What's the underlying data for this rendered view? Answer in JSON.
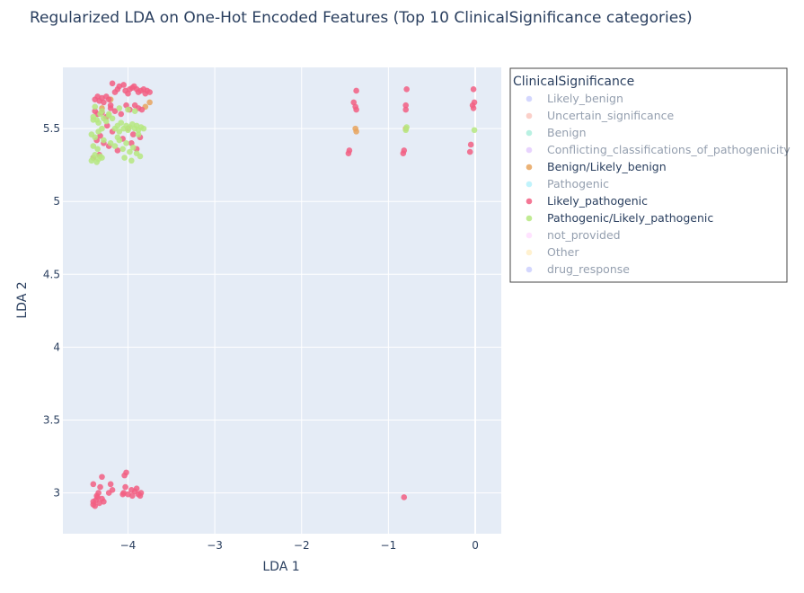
{
  "chart_data": {
    "type": "scatter",
    "title": "Regularized LDA on One-Hot Encoded Features (Top 10 ClinicalSignificance categories)",
    "xlabel": "LDA 1",
    "ylabel": "LDA 2",
    "xlim": [
      -4.75,
      0.3
    ],
    "ylim": [
      2.72,
      5.92
    ],
    "xticks": [
      -4,
      -3,
      -2,
      -1,
      0
    ],
    "xtick_labels": [
      "−4",
      "−3",
      "−2",
      "−1",
      "0"
    ],
    "yticks": [
      3,
      3.5,
      4,
      4.5,
      5,
      5.5
    ],
    "ytick_labels": [
      "3",
      "3.5",
      "4",
      "4.5",
      "5",
      "5.5"
    ],
    "grid": true,
    "background": "#e5ecf6",
    "legend": {
      "title": "ClinicalSignificance",
      "placement": "right"
    },
    "series": [
      {
        "name": "Likely_benign",
        "color": "#636efa",
        "visible": false,
        "x": [],
        "y": []
      },
      {
        "name": "Uncertain_significance",
        "color": "#ef553b",
        "visible": false,
        "x": [],
        "y": []
      },
      {
        "name": "Benign",
        "color": "#00cc96",
        "visible": false,
        "x": [],
        "y": []
      },
      {
        "name": "Conflicting_classifications_of_pathogenicity",
        "color": "#ab63fa",
        "visible": false,
        "x": [],
        "y": []
      },
      {
        "name": "Benign/Likely_benign",
        "color": "#e8a55e",
        "visible": true,
        "x": [
          -1.37,
          -1.38,
          -4.3,
          -4.2,
          -3.8,
          -3.75,
          -0.8
        ],
        "y": [
          5.48,
          5.5,
          5.64,
          5.7,
          5.65,
          5.68,
          5.5
        ]
      },
      {
        "name": "Pathogenic",
        "color": "#19d3f3",
        "visible": false,
        "x": [],
        "y": []
      },
      {
        "name": "Likely_pathogenic",
        "color": "#f25f82",
        "visible": true,
        "x": [
          -4.38,
          -4.35,
          -4.33,
          -4.3,
          -4.28,
          -4.25,
          -4.22,
          -4.2,
          -4.18,
          -4.15,
          -4.12,
          -4.1,
          -4.05,
          -4.03,
          -4.0,
          -3.98,
          -3.95,
          -3.93,
          -3.9,
          -3.88,
          -3.85,
          -3.82,
          -3.8,
          -3.78,
          -3.75,
          -4.38,
          -4.35,
          -4.3,
          -4.25,
          -4.2,
          -4.15,
          -4.08,
          -4.02,
          -3.98,
          -3.92,
          -3.88,
          -3.84,
          -4.36,
          -4.32,
          -4.28,
          -4.22,
          -4.12,
          -4.06,
          -3.96,
          -3.9,
          -4.4,
          -4.33,
          -4.24,
          -4.18,
          -4.0,
          -3.94,
          -3.86,
          -4.4,
          -4.37,
          -4.35,
          -4.33,
          -4.3,
          -4.28,
          -4.4,
          -4.36,
          -4.32,
          -4.22,
          -4.2,
          -4.18,
          -4.05,
          -4.03,
          -4.0,
          -3.95,
          -3.92,
          -3.9,
          -3.88,
          -3.85,
          -4.38,
          -4.3,
          -4.04,
          -4.02,
          -4.4,
          -4.34,
          -4.06,
          -3.96,
          -3.86,
          -1.37,
          -1.38,
          -1.37,
          -1.4,
          -1.45,
          -1.46,
          -0.8,
          -0.8,
          -0.79,
          -0.82,
          -0.83,
          -0.02,
          -0.03,
          -0.02,
          -0.01,
          -0.05,
          -0.06,
          -0.82
        ],
        "y": [
          5.7,
          5.72,
          5.69,
          5.71,
          5.68,
          5.72,
          5.7,
          5.66,
          5.81,
          5.75,
          5.77,
          5.79,
          5.8,
          5.76,
          5.74,
          5.77,
          5.78,
          5.79,
          5.77,
          5.75,
          5.76,
          5.77,
          5.74,
          5.76,
          5.75,
          5.62,
          5.6,
          5.61,
          5.58,
          5.64,
          5.62,
          5.6,
          5.66,
          5.63,
          5.66,
          5.64,
          5.63,
          5.42,
          5.45,
          5.4,
          5.38,
          5.35,
          5.43,
          5.4,
          5.36,
          5.3,
          5.32,
          5.52,
          5.48,
          5.5,
          5.46,
          5.44,
          2.92,
          2.95,
          2.97,
          2.93,
          2.96,
          2.94,
          3.06,
          2.98,
          3.04,
          3.0,
          3.06,
          3.02,
          3.0,
          3.04,
          2.99,
          2.98,
          3.01,
          3.03,
          2.99,
          3.0,
          2.91,
          3.11,
          3.12,
          3.14,
          2.94,
          3.0,
          2.99,
          3.02,
          2.98,
          5.63,
          5.65,
          5.76,
          5.68,
          5.35,
          5.33,
          5.63,
          5.66,
          5.77,
          5.35,
          5.33,
          5.64,
          5.66,
          5.77,
          5.68,
          5.39,
          5.34,
          2.97
        ]
      },
      {
        "name": "Pathogenic/Likely_pathogenic",
        "color": "#b6e880",
        "visible": true,
        "x": [
          -4.42,
          -4.4,
          -4.38,
          -4.36,
          -4.34,
          -4.32,
          -4.3,
          -4.42,
          -4.38,
          -4.34,
          -4.4,
          -4.36,
          -4.32,
          -4.28,
          -4.25,
          -4.22,
          -4.18,
          -4.15,
          -4.12,
          -4.1,
          -4.08,
          -4.05,
          -4.02,
          -4.0,
          -3.98,
          -3.95,
          -3.92,
          -3.9,
          -3.88,
          -3.85,
          -3.82,
          -4.2,
          -4.15,
          -4.1,
          -4.06,
          -4.02,
          -3.98,
          -3.94,
          -3.9,
          -3.86,
          -4.38,
          -4.3,
          -4.22,
          -4.1,
          -4.0,
          -3.92,
          -4.4,
          -4.35,
          -4.28,
          -4.12,
          -4.04,
          -3.96,
          -3.88,
          -4.4,
          -4.34,
          -4.3,
          -0.8,
          -0.79,
          -0.01
        ],
        "y": [
          5.28,
          5.3,
          5.32,
          5.27,
          5.29,
          5.31,
          5.3,
          5.46,
          5.44,
          5.48,
          5.58,
          5.56,
          5.6,
          5.57,
          5.55,
          5.59,
          5.57,
          5.5,
          5.52,
          5.48,
          5.54,
          5.5,
          5.52,
          5.49,
          5.51,
          5.53,
          5.5,
          5.52,
          5.49,
          5.51,
          5.5,
          5.4,
          5.38,
          5.42,
          5.36,
          5.4,
          5.34,
          5.37,
          5.33,
          5.31,
          5.65,
          5.62,
          5.6,
          5.64,
          5.63,
          5.62,
          5.38,
          5.36,
          5.42,
          5.44,
          5.3,
          5.28,
          5.46,
          5.56,
          5.54,
          5.5,
          5.49,
          5.51,
          5.49
        ]
      },
      {
        "name": "not_provided",
        "color": "#ff97ff",
        "visible": false,
        "x": [],
        "y": []
      },
      {
        "name": "Other",
        "color": "#fecb52",
        "visible": false,
        "x": [],
        "y": []
      },
      {
        "name": "drug_response",
        "color": "#636efa",
        "visible": false,
        "x": [],
        "y": []
      }
    ]
  }
}
